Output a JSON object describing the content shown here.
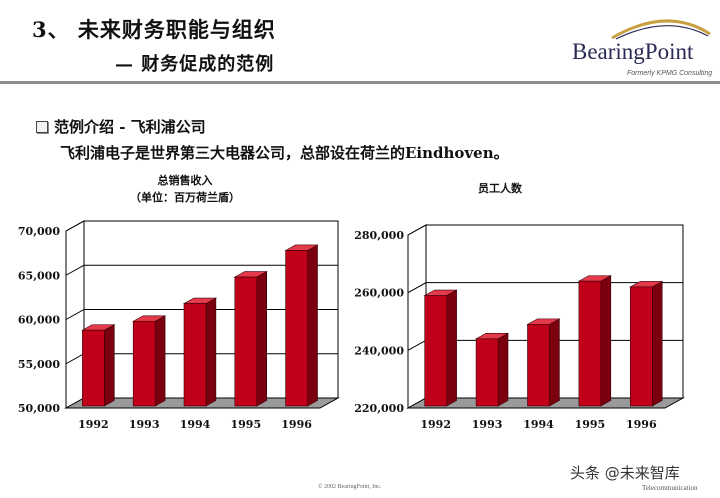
{
  "header": {
    "title": "3、 未来财务职能与组织",
    "subtitle": "— 财务促成的范例"
  },
  "logo": {
    "name": "BearingPoint",
    "tagline": "Formerly KPMG Consulting"
  },
  "intro": {
    "bullet": "范例介绍 - 飞利浦公司",
    "description": "飞利浦电子是世界第三大电器公司，总部设在荷兰的Eindhoven。"
  },
  "footer": {
    "copyright": "© 2002 BearingPoint, Inc.",
    "watermark": "头条 @未来智库",
    "telecom": "Telecommunication"
  },
  "colors": {
    "bar_front": "#c00018",
    "bar_side": "#7a0010",
    "bar_top": "#e43a4a",
    "floor": "#9a9a9a",
    "wall_line": "#000000"
  },
  "chart_data": [
    {
      "type": "bar",
      "title": "总销售收入",
      "subtitle": "（单位：百万荷兰盾）",
      "categories": [
        "1992",
        "1993",
        "1994",
        "1995",
        "1996"
      ],
      "values": [
        58800,
        59800,
        61800,
        64800,
        67800
      ],
      "ylim": [
        50000,
        70000
      ],
      "yticks": [
        "50,000",
        "55,000",
        "60,000",
        "65,000",
        "70,000"
      ],
      "grid": true,
      "three_d": true
    },
    {
      "type": "bar",
      "title": "员工人数",
      "categories": [
        "1992",
        "1993",
        "1994",
        "1995",
        "1996"
      ],
      "values": [
        259000,
        244000,
        249000,
        264000,
        262000
      ],
      "ylim": [
        220000,
        280000
      ],
      "yticks": [
        "220,000",
        "240,000",
        "260,000",
        "280,000"
      ],
      "grid": true,
      "three_d": true
    }
  ]
}
